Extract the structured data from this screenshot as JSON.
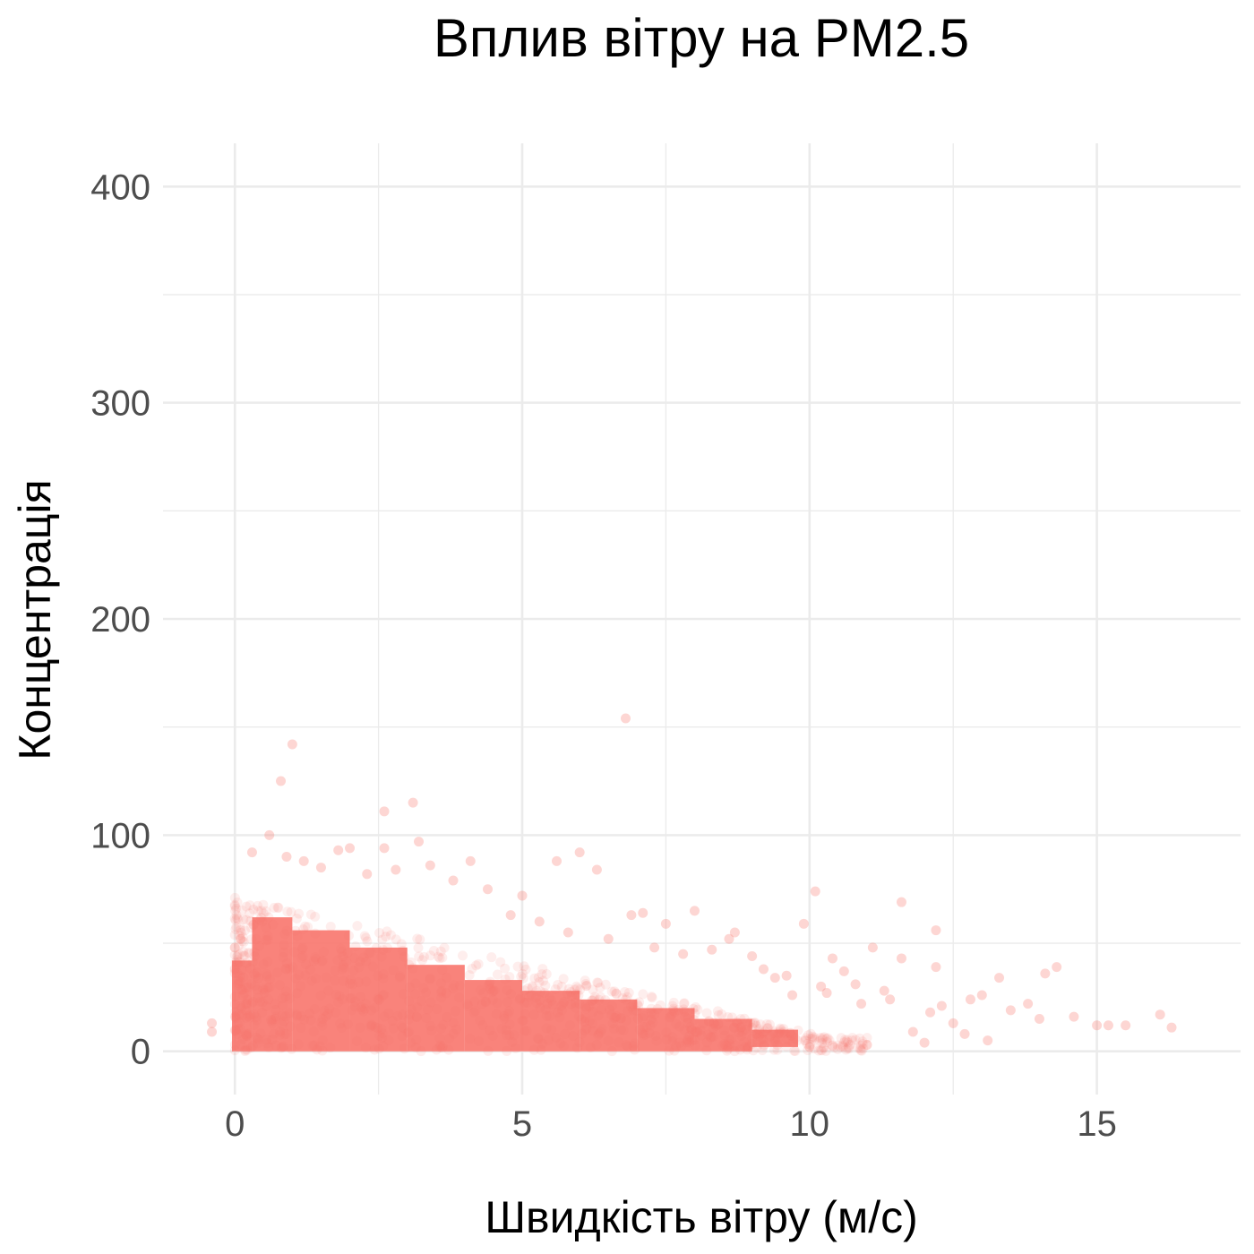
{
  "chart_data": {
    "type": "scatter",
    "title": "Вплив вітру на PM2.5",
    "xlabel": "Швидкість вітру (м/с)",
    "ylabel": "Концентрація",
    "xlim": [
      -1.25,
      17.5
    ],
    "ylim": [
      -20,
      420
    ],
    "x_ticks": [
      0,
      5,
      10,
      15
    ],
    "y_ticks": [
      0,
      100,
      200,
      300,
      400
    ],
    "x_tick_labels": [
      "0",
      "5",
      "10",
      "15"
    ],
    "y_tick_labels": [
      "0",
      "100",
      "200",
      "300",
      "400"
    ],
    "grid": true,
    "legend": "none",
    "point_color": "#F8766D",
    "point_opacity": 0.12,
    "outliers": [
      {
        "x": 6.8,
        "y": 154
      },
      {
        "x": 1.0,
        "y": 142
      },
      {
        "x": 0.8,
        "y": 125
      },
      {
        "x": 3.1,
        "y": 115
      },
      {
        "x": 2.6,
        "y": 111
      },
      {
        "x": 0.6,
        "y": 100
      },
      {
        "x": 3.2,
        "y": 97
      },
      {
        "x": 2.6,
        "y": 94
      },
      {
        "x": 6.0,
        "y": 92
      },
      {
        "x": 0.3,
        "y": 92
      },
      {
        "x": 2.0,
        "y": 94
      },
      {
        "x": 1.8,
        "y": 93
      },
      {
        "x": 5.6,
        "y": 88
      },
      {
        "x": 4.1,
        "y": 88
      },
      {
        "x": 6.3,
        "y": 84
      },
      {
        "x": 3.4,
        "y": 86
      },
      {
        "x": 2.8,
        "y": 84
      },
      {
        "x": 10.1,
        "y": 74
      },
      {
        "x": 11.6,
        "y": 69
      },
      {
        "x": 12.2,
        "y": 56
      },
      {
        "x": 8.0,
        "y": 65
      },
      {
        "x": 6.9,
        "y": 63
      },
      {
        "x": 7.1,
        "y": 64
      },
      {
        "x": 7.5,
        "y": 59
      },
      {
        "x": 9.9,
        "y": 59
      },
      {
        "x": 14.3,
        "y": 39
      },
      {
        "x": 14.1,
        "y": 36
      },
      {
        "x": 13.3,
        "y": 34
      },
      {
        "x": 12.2,
        "y": 39
      },
      {
        "x": 11.6,
        "y": 43
      },
      {
        "x": 10.4,
        "y": 43
      },
      {
        "x": 11.1,
        "y": 48
      },
      {
        "x": 16.1,
        "y": 17
      },
      {
        "x": 16.3,
        "y": 11
      },
      {
        "x": 15.5,
        "y": 12
      },
      {
        "x": 15.2,
        "y": 12
      },
      {
        "x": 14.6,
        "y": 16
      },
      {
        "x": 15.0,
        "y": 12
      },
      {
        "x": -0.4,
        "y": 9
      },
      {
        "x": -0.4,
        "y": 13
      },
      {
        "x": 12.0,
        "y": 4
      },
      {
        "x": 13.1,
        "y": 5
      },
      {
        "x": 13.8,
        "y": 22
      },
      {
        "x": 13.0,
        "y": 26
      },
      {
        "x": 12.8,
        "y": 24
      },
      {
        "x": 9.4,
        "y": 34
      },
      {
        "x": 8.6,
        "y": 52
      },
      {
        "x": 8.7,
        "y": 55
      },
      {
        "x": 9.0,
        "y": 44
      },
      {
        "x": 10.6,
        "y": 37
      },
      {
        "x": 12.1,
        "y": 18
      },
      {
        "x": 11.8,
        "y": 9
      },
      {
        "x": 12.5,
        "y": 13
      },
      {
        "x": 13.5,
        "y": 19
      },
      {
        "x": 14.0,
        "y": 15
      },
      {
        "x": 10.2,
        "y": 30
      },
      {
        "x": 9.7,
        "y": 26
      },
      {
        "x": 11.3,
        "y": 28
      },
      {
        "x": 10.9,
        "y": 22
      },
      {
        "x": 5.0,
        "y": 72
      },
      {
        "x": 4.4,
        "y": 75
      },
      {
        "x": 3.8,
        "y": 79
      },
      {
        "x": 4.8,
        "y": 63
      },
      {
        "x": 5.3,
        "y": 60
      },
      {
        "x": 5.8,
        "y": 55
      },
      {
        "x": 6.5,
        "y": 52
      },
      {
        "x": 7.3,
        "y": 48
      },
      {
        "x": 7.8,
        "y": 45
      },
      {
        "x": 8.3,
        "y": 47
      },
      {
        "x": 9.2,
        "y": 38
      },
      {
        "x": 9.6,
        "y": 35
      },
      {
        "x": 10.3,
        "y": 27
      },
      {
        "x": 10.8,
        "y": 31
      },
      {
        "x": 11.4,
        "y": 24
      },
      {
        "x": 12.3,
        "y": 21
      },
      {
        "x": 12.7,
        "y": 8
      },
      {
        "x": 11.0,
        "y": 3
      },
      {
        "x": 10.0,
        "y": 2
      },
      {
        "x": 0.1,
        "y": 52
      },
      {
        "x": 0.0,
        "y": 48
      },
      {
        "x": 1.2,
        "y": 88
      },
      {
        "x": 1.5,
        "y": 85
      },
      {
        "x": 0.9,
        "y": 90
      },
      {
        "x": 2.3,
        "y": 82
      }
    ],
    "density_bands": [
      {
        "x0": -0.05,
        "x1": 0.3,
        "y0": 0,
        "y1": 42
      },
      {
        "x0": 0.3,
        "x1": 1.0,
        "y0": 0,
        "y1": 62
      },
      {
        "x0": 1.0,
        "x1": 2.0,
        "y0": 0,
        "y1": 56
      },
      {
        "x0": 2.0,
        "x1": 3.0,
        "y0": 0,
        "y1": 48
      },
      {
        "x0": 3.0,
        "x1": 4.0,
        "y0": 0,
        "y1": 40
      },
      {
        "x0": 4.0,
        "x1": 5.0,
        "y0": 0,
        "y1": 33
      },
      {
        "x0": 5.0,
        "x1": 6.0,
        "y0": 0,
        "y1": 28
      },
      {
        "x0": 6.0,
        "x1": 7.0,
        "y0": 0,
        "y1": 24
      },
      {
        "x0": 7.0,
        "x1": 8.0,
        "y0": 0,
        "y1": 20
      },
      {
        "x0": 8.0,
        "x1": 9.0,
        "y0": 0,
        "y1": 15
      },
      {
        "x0": 9.0,
        "x1": 9.8,
        "y0": 2,
        "y1": 10
      }
    ]
  }
}
